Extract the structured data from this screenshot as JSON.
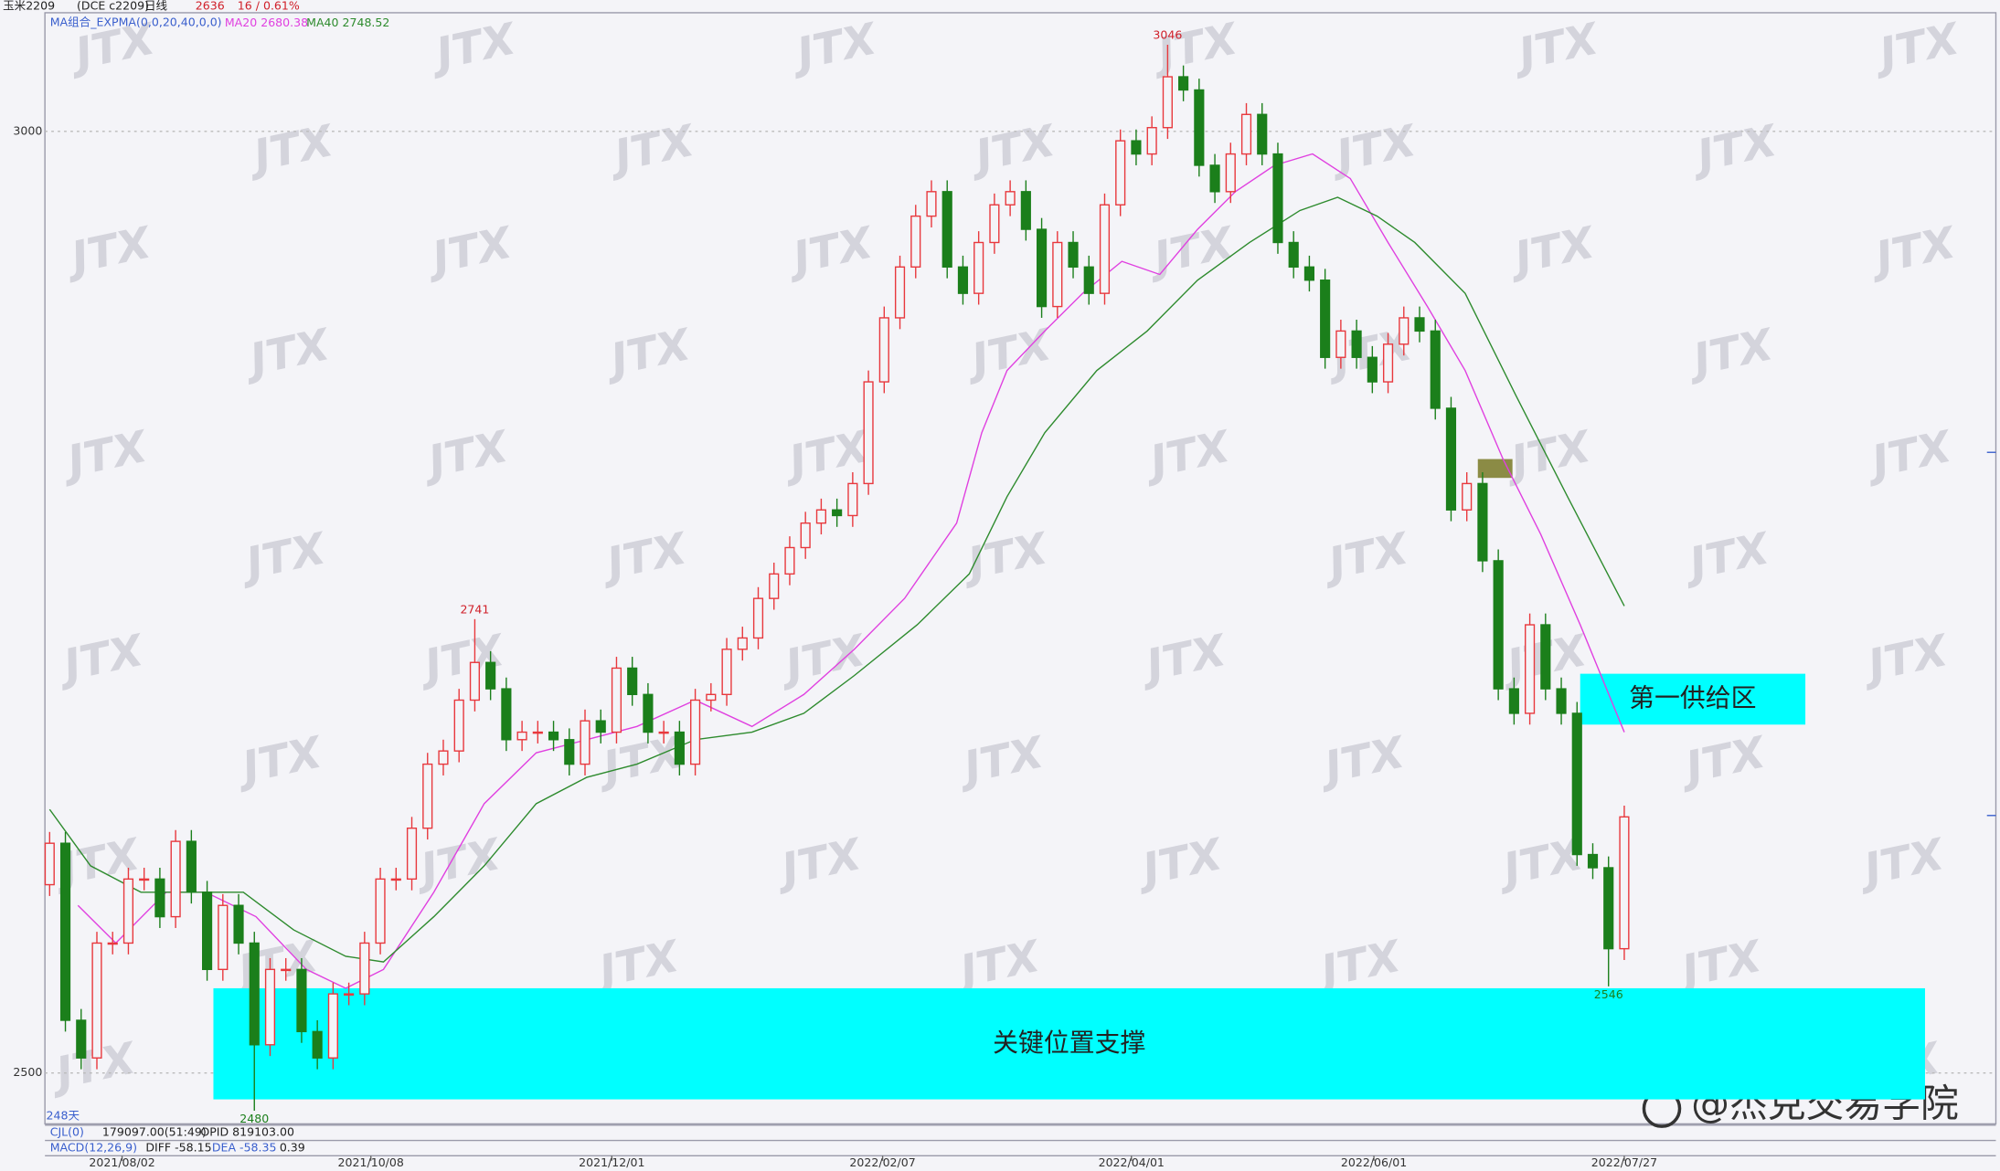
{
  "chart_data": {
    "type": "candlestick",
    "symbol": "玉米2209",
    "contract": "(DCE c2209)",
    "period": "日线",
    "change": "16 / 0.61%",
    "indicator": "MA组合_EXPMA(0,0,20,40,0,0)",
    "bar_count": "248天",
    "watermark": "JTX",
    "brand": "@杰克交易学院",
    "up_color": "#e8383d",
    "down_color": "#1b7f1b",
    "open": [
      2600,
      2622,
      2528,
      2508,
      2569,
      2569,
      2603,
      2603,
      2583,
      2623,
      2596,
      2555,
      2589,
      2569,
      2515,
      2555,
      2555,
      2522,
      2508,
      2542,
      2542,
      2569,
      2603,
      2603,
      2630,
      2664,
      2671,
      2698,
      2718,
      2704,
      2677,
      2681,
      2681,
      2677,
      2664,
      2687,
      2681,
      2715,
      2701,
      2681,
      2681,
      2664,
      2698,
      2701,
      2725,
      2731,
      2752,
      2765,
      2779,
      2792,
      2799,
      2796,
      2813,
      2867,
      2901,
      2928,
      2955,
      2968,
      2928,
      2914,
      2941,
      2961,
      2968,
      2948,
      2907,
      2941,
      2928,
      2914,
      2961,
      2995,
      2988,
      3002,
      3029,
      3022,
      2982,
      2968,
      2988,
      3009,
      2988,
      2941,
      2928,
      2921,
      2880,
      2894,
      2880,
      2867,
      2887,
      2901,
      2894,
      2853,
      2799,
      2813,
      2772,
      2704,
      2691,
      2738,
      2704,
      2691,
      2616,
      2609,
      2566
    ],
    "high": [
      2628,
      2628,
      2534,
      2575,
      2575,
      2609,
      2609,
      2609,
      2629,
      2629,
      2602,
      2595,
      2595,
      2575,
      2561,
      2561,
      2561,
      2528,
      2548,
      2548,
      2575,
      2609,
      2609,
      2636,
      2670,
      2677,
      2704,
      2741,
      2724,
      2710,
      2687,
      2687,
      2687,
      2683,
      2693,
      2693,
      2721,
      2721,
      2707,
      2687,
      2687,
      2704,
      2707,
      2731,
      2737,
      2758,
      2771,
      2785,
      2798,
      2805,
      2805,
      2819,
      2873,
      2907,
      2934,
      2961,
      2974,
      2974,
      2934,
      2947,
      2967,
      2974,
      2974,
      2954,
      2947,
      2947,
      2934,
      2967,
      3001,
      3001,
      3008,
      3046,
      3035,
      3028,
      2988,
      2994,
      3015,
      3015,
      2994,
      2947,
      2934,
      2927,
      2900,
      2900,
      2886,
      2893,
      2907,
      2907,
      2900,
      2859,
      2819,
      2819,
      2778,
      2710,
      2744,
      2744,
      2710,
      2697,
      2622,
      2615,
      2642
    ],
    "low": [
      2594,
      2522,
      2502,
      2502,
      2563,
      2563,
      2597,
      2577,
      2577,
      2590,
      2549,
      2549,
      2563,
      2480,
      2509,
      2549,
      2516,
      2502,
      2502,
      2536,
      2536,
      2563,
      2597,
      2597,
      2624,
      2658,
      2665,
      2692,
      2698,
      2671,
      2671,
      2675,
      2671,
      2658,
      2658,
      2675,
      2675,
      2695,
      2675,
      2675,
      2658,
      2658,
      2692,
      2695,
      2719,
      2725,
      2746,
      2759,
      2773,
      2786,
      2790,
      2790,
      2807,
      2861,
      2895,
      2922,
      2949,
      2922,
      2908,
      2908,
      2935,
      2955,
      2942,
      2901,
      2901,
      2922,
      2908,
      2908,
      2955,
      2982,
      2982,
      2996,
      3016,
      2976,
      2962,
      2962,
      2982,
      2982,
      2935,
      2922,
      2915,
      2874,
      2874,
      2874,
      2861,
      2861,
      2881,
      2888,
      2847,
      2793,
      2793,
      2766,
      2698,
      2685,
      2685,
      2698,
      2685,
      2610,
      2603,
      2546,
      2560
    ],
    "close": [
      2622,
      2528,
      2508,
      2569,
      2569,
      2603,
      2603,
      2583,
      2623,
      2596,
      2555,
      2589,
      2569,
      2515,
      2555,
      2555,
      2522,
      2508,
      2542,
      2542,
      2569,
      2603,
      2603,
      2630,
      2664,
      2671,
      2698,
      2718,
      2704,
      2677,
      2681,
      2681,
      2677,
      2664,
      2687,
      2681,
      2715,
      2701,
      2681,
      2681,
      2664,
      2698,
      2701,
      2725,
      2731,
      2752,
      2765,
      2779,
      2792,
      2799,
      2796,
      2813,
      2867,
      2901,
      2928,
      2955,
      2968,
      2928,
      2914,
      2941,
      2961,
      2968,
      2948,
      2907,
      2941,
      2928,
      2914,
      2961,
      2995,
      2988,
      3002,
      3029,
      3022,
      2982,
      2968,
      2988,
      3009,
      2988,
      2941,
      2928,
      2921,
      2880,
      2894,
      2880,
      2867,
      2887,
      2901,
      2894,
      2853,
      2799,
      2813,
      2772,
      2704,
      2691,
      2738,
      2704,
      2691,
      2616,
      2609,
      2566,
      2636
    ],
    "xlim": [
      -0.3,
      123.6
    ],
    "xticks": [
      {
        "value": 4.6,
        "label": "2021/08/02"
      },
      {
        "value": 20.4,
        "label": "2021/10/08"
      },
      {
        "value": 35.7,
        "label": "2021/12/01"
      },
      {
        "value": 52.9,
        "label": "2022/02/07"
      },
      {
        "value": 68.7,
        "label": "2022/04/01"
      },
      {
        "value": 84.1,
        "label": "2022/06/01"
      },
      {
        "value": 100,
        "label": "2022/07/27"
      }
    ],
    "ylim": [
      2473,
      3063
    ],
    "yticks": [
      2500,
      3000
    ],
    "grid": true,
    "series": [
      {
        "name": "MA20",
        "color": "#e040e0",
        "last_value": 2680.38,
        "x": [
          1.8,
          4.2,
          7.4,
          9.9,
          13.1,
          16.3,
          18.8,
          21.2,
          24.4,
          27.6,
          30.9,
          34.1,
          37.3,
          41,
          44.6,
          47.9,
          51.1,
          54.3,
          57.6,
          59.2,
          60.8,
          63.2,
          65.6,
          68.1,
          70.5,
          72.9,
          75.3,
          77.8,
          80.2,
          82.6,
          85,
          87.5,
          89.9,
          92.3,
          94.7,
          97.2,
          100
        ],
        "values": [
          2589,
          2569,
          2596,
          2596,
          2583,
          2555,
          2545,
          2555,
          2596,
          2643,
          2670,
          2677,
          2684,
          2698,
          2684,
          2701,
          2725,
          2752,
          2792,
          2840,
          2873,
          2894,
          2914,
          2931,
          2924,
          2948,
          2968,
          2982,
          2988,
          2975,
          2941,
          2907,
          2873,
          2826,
          2786,
          2738,
          2681
        ]
      },
      {
        "name": "MA40",
        "color": "#2e8b2e",
        "last_value": 2748.52,
        "x": [
          0,
          2.6,
          5.8,
          9,
          12.3,
          15.5,
          18.8,
          21.2,
          24.4,
          27.6,
          30.9,
          34.1,
          37.3,
          41,
          44.6,
          47.9,
          51.1,
          55.1,
          58.4,
          60.8,
          63.2,
          66.5,
          69.7,
          72.9,
          76.2,
          79.4,
          81.8,
          84.3,
          86.7,
          89.9,
          93.1,
          96.4,
          100
        ],
        "values": [
          2640,
          2610,
          2596,
          2596,
          2596,
          2576,
          2562,
          2559,
          2583,
          2610,
          2643,
          2657,
          2664,
          2677,
          2681,
          2691,
          2711,
          2738,
          2765,
          2806,
          2840,
          2873,
          2894,
          2921,
          2941,
          2958,
          2965,
          2955,
          2941,
          2914,
          2860,
          2806,
          2748
        ]
      }
    ],
    "zones": [
      {
        "label": "第一供给区",
        "color": "#00ffff",
        "x": [
          97.2,
          111.5
        ],
        "y": [
          2685,
          2712
        ]
      },
      {
        "label": "关键位置支撑",
        "color": "#00ffff",
        "x": [
          10.4,
          119.1
        ],
        "y": [
          2486,
          2545
        ]
      },
      {
        "color": "#8b8b45",
        "x": [
          90.7,
          92.9
        ],
        "y": [
          2816,
          2826
        ]
      }
    ],
    "volume_panel": {
      "name": "CJL(0)",
      "value": "179097.00(51:49)",
      "open_interest": "OPID 819103.00"
    },
    "macd_panel": {
      "name": "MACD(12,26,9)",
      "diff": "DIFF -58.15",
      "dea": "DEA -58.35",
      "macd": "0.39"
    }
  }
}
